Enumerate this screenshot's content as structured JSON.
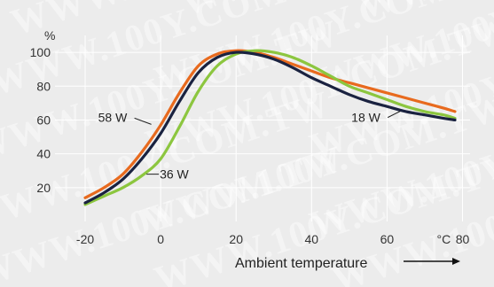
{
  "chart_data": {
    "type": "line",
    "title": "",
    "xlabel": "Ambient temperature",
    "ylabel": "%",
    "x_unit_label": "°C",
    "xlim": [
      -28,
      82
    ],
    "ylim": [
      0,
      110
    ],
    "x_ticks": [
      -20,
      0,
      20,
      40,
      60,
      80
    ],
    "x_tick_labels": [
      "-20",
      "0",
      "20",
      "40",
      "60",
      "80"
    ],
    "y_ticks": [
      20,
      40,
      60,
      80,
      100
    ],
    "y_tick_labels": [
      "20",
      "40",
      "60",
      "80",
      "100"
    ],
    "grid": true,
    "legend": "none",
    "series": [
      {
        "name": "58 W",
        "color": "#e86a1e",
        "x": [
          -20,
          -15,
          -10,
          -5,
          0,
          5,
          10,
          15,
          20,
          25,
          30,
          35,
          40,
          45,
          50,
          55,
          60,
          65,
          70,
          75,
          78
        ],
        "y": [
          14,
          20,
          28,
          41,
          57,
          76,
          92,
          99,
          101,
          100,
          97,
          93,
          89,
          85,
          82,
          79,
          76,
          73,
          70,
          67,
          65
        ]
      },
      {
        "name": "36 W",
        "color": "#8cc63f",
        "x": [
          -20,
          -15,
          -10,
          -5,
          0,
          5,
          10,
          15,
          20,
          25,
          30,
          35,
          40,
          45,
          50,
          55,
          60,
          65,
          70,
          75,
          78
        ],
        "y": [
          10,
          15,
          20,
          27,
          37,
          56,
          77,
          92,
          99,
          101,
          100,
          97,
          92,
          86,
          80,
          76,
          72,
          68,
          65,
          63,
          61
        ]
      },
      {
        "name": "18 W",
        "color": "#1a2240",
        "x": [
          -20,
          -15,
          -10,
          -5,
          0,
          5,
          10,
          15,
          20,
          25,
          30,
          35,
          40,
          45,
          50,
          55,
          60,
          65,
          70,
          75,
          78
        ],
        "y": [
          11,
          17,
          25,
          37,
          52,
          71,
          88,
          97,
          100,
          99,
          96,
          91,
          85,
          80,
          75,
          71,
          68,
          65,
          63,
          61,
          60
        ]
      }
    ],
    "series_labels": [
      {
        "text": "58 W",
        "series": "58 W",
        "at_x": -2
      },
      {
        "text": "36 W",
        "series": "36 W",
        "at_x": -4
      },
      {
        "text": "18 W",
        "series": "18 W",
        "at_x": 63
      }
    ]
  },
  "watermark": {
    "text": "WWW.100Y.COM.TW",
    "repeat_count": 9
  }
}
